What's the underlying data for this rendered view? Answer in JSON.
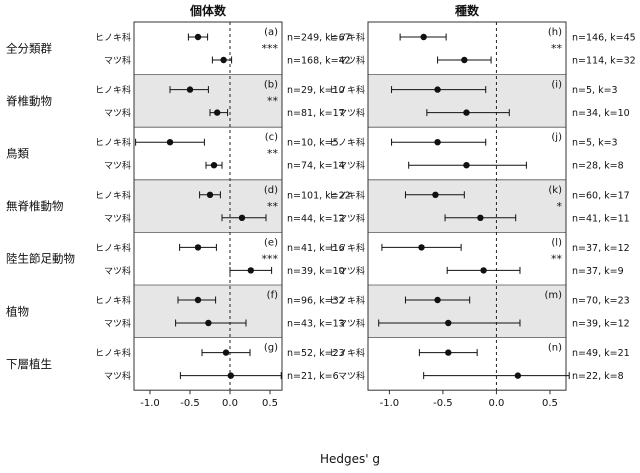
{
  "chart_data": {
    "type": "scatter",
    "subtype": "forest-plot",
    "xlabel": "Hedges' g",
    "x_ticks": [
      "-1.0",
      "-0.5",
      "0.0",
      "0.5"
    ],
    "xlim": [
      -1.2,
      0.65
    ],
    "reference_line": 0,
    "categories": [
      "全分類群",
      "脊椎動物",
      "鳥類",
      "無脊椎動物",
      "陸生節足動物",
      "植物",
      "下層植生"
    ],
    "groups": [
      "ヒノキ科",
      "マツ科"
    ],
    "shaded_rows": [
      1,
      3,
      5
    ],
    "panels": [
      {
        "title": "個体数",
        "rows": [
          {
            "label": "(a)",
            "sig": "***",
            "est": [
              {
                "mean": -0.4,
                "lo": -0.52,
                "hi": -0.28,
                "n": "n=249, k=67"
              },
              {
                "mean": -0.08,
                "lo": -0.22,
                "hi": 0.02,
                "n": "n=168, k=42"
              }
            ]
          },
          {
            "label": "(b)",
            "sig": "**",
            "est": [
              {
                "mean": -0.5,
                "lo": -0.75,
                "hi": -0.27,
                "n": "n=29, k=10"
              },
              {
                "mean": -0.16,
                "lo": -0.25,
                "hi": -0.03,
                "n": "n=81, k=17"
              }
            ]
          },
          {
            "label": "(c)",
            "sig": "**",
            "est": [
              {
                "mean": -0.75,
                "lo": -1.18,
                "hi": -0.32,
                "n": "n=10, k=5"
              },
              {
                "mean": -0.2,
                "lo": -0.3,
                "hi": -0.1,
                "n": "n=74, k=14"
              }
            ]
          },
          {
            "label": "(d)",
            "sig": "**",
            "est": [
              {
                "mean": -0.25,
                "lo": -0.38,
                "hi": -0.12,
                "n": "n=101, k=22"
              },
              {
                "mean": 0.15,
                "lo": -0.1,
                "hi": 0.45,
                "n": "n=44, k=12"
              }
            ]
          },
          {
            "label": "(e)",
            "sig": "***",
            "est": [
              {
                "mean": -0.4,
                "lo": -0.63,
                "hi": -0.17,
                "n": "n=41, k=16"
              },
              {
                "mean": 0.26,
                "lo": 0.0,
                "hi": 0.52,
                "n": "n=39, k=10"
              }
            ]
          },
          {
            "label": "(f)",
            "sig": "",
            "est": [
              {
                "mean": -0.4,
                "lo": -0.65,
                "hi": -0.18,
                "n": "n=96, k=32"
              },
              {
                "mean": -0.27,
                "lo": -0.68,
                "hi": 0.2,
                "n": "n=43, k=13"
              }
            ]
          },
          {
            "label": "(g)",
            "sig": "",
            "est": [
              {
                "mean": -0.05,
                "lo": -0.35,
                "hi": 0.25,
                "n": "n=52, k=23"
              },
              {
                "mean": 0.01,
                "lo": -0.62,
                "hi": 0.64,
                "n": "n=21, k=6"
              }
            ]
          }
        ]
      },
      {
        "title": "種数",
        "rows": [
          {
            "label": "(h)",
            "sig": "**",
            "est": [
              {
                "mean": -0.68,
                "lo": -0.9,
                "hi": -0.47,
                "n": "n=146, k=45"
              },
              {
                "mean": -0.3,
                "lo": -0.55,
                "hi": -0.05,
                "n": "n=114, k=32"
              }
            ]
          },
          {
            "label": "(i)",
            "sig": "",
            "est": [
              {
                "mean": -0.55,
                "lo": -0.98,
                "hi": -0.1,
                "n": "n=5, k=3"
              },
              {
                "mean": -0.28,
                "lo": -0.65,
                "hi": 0.12,
                "n": "n=34, k=10"
              }
            ]
          },
          {
            "label": "(j)",
            "sig": "",
            "est": [
              {
                "mean": -0.55,
                "lo": -0.98,
                "hi": -0.1,
                "n": "n=5, k=3"
              },
              {
                "mean": -0.28,
                "lo": -0.82,
                "hi": 0.28,
                "n": "n=28, k=8"
              }
            ]
          },
          {
            "label": "(k)",
            "sig": "*",
            "est": [
              {
                "mean": -0.57,
                "lo": -0.85,
                "hi": -0.3,
                "n": "n=60, k=17"
              },
              {
                "mean": -0.15,
                "lo": -0.48,
                "hi": 0.18,
                "n": "n=41, k=11"
              }
            ]
          },
          {
            "label": "(l)",
            "sig": "**",
            "est": [
              {
                "mean": -0.7,
                "lo": -1.07,
                "hi": -0.33,
                "n": "n=37, k=12"
              },
              {
                "mean": -0.12,
                "lo": -0.46,
                "hi": 0.22,
                "n": "n=37, k=9"
              }
            ]
          },
          {
            "label": "(m)",
            "sig": "",
            "est": [
              {
                "mean": -0.55,
                "lo": -0.85,
                "hi": -0.25,
                "n": "n=70, k=23"
              },
              {
                "mean": -0.45,
                "lo": -1.1,
                "hi": 0.22,
                "n": "n=39, k=12"
              }
            ]
          },
          {
            "label": "(n)",
            "sig": "",
            "est": [
              {
                "mean": -0.45,
                "lo": -0.72,
                "hi": -0.18,
                "n": "n=49, k=21"
              },
              {
                "mean": 0.2,
                "lo": -0.68,
                "hi": 0.68,
                "n": "n=22, k=8"
              }
            ]
          }
        ]
      }
    ]
  }
}
